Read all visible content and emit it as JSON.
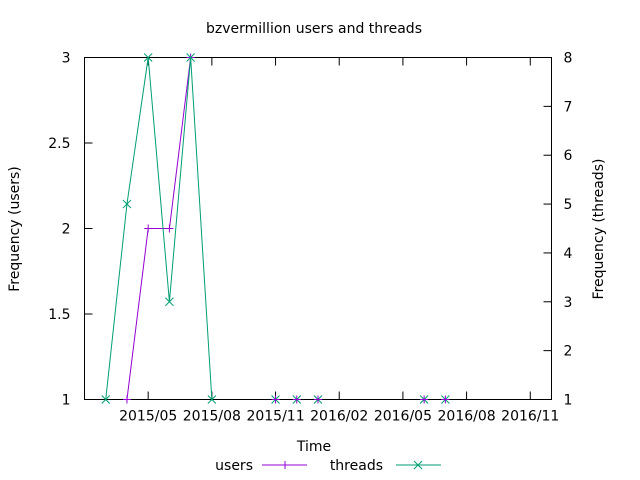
{
  "chart_data": {
    "type": "line",
    "title": "bzvermillion users and threads",
    "xlabel": "Time",
    "ylabel_left": "Frequency (users)",
    "ylabel_right": "Frequency (threads)",
    "x_tick_labels": [
      "2015/05",
      "2015/08",
      "2015/11",
      "2016/02",
      "2016/05",
      "2016/08",
      "2016/11"
    ],
    "ylim_left": [
      1,
      3
    ],
    "y_ticks_left": [
      "1",
      "1.5",
      "2",
      "2.5",
      "3"
    ],
    "ylim_right": [
      1,
      8
    ],
    "y_ticks_right": [
      "1",
      "2",
      "3",
      "4",
      "5",
      "6",
      "7",
      "8"
    ],
    "x_range": [
      "2015-02",
      "2016-12"
    ],
    "grid": false,
    "legend_position": "bottom",
    "series": [
      {
        "name": "users",
        "axis": "left",
        "color": "#9400d3",
        "marker": "plus",
        "points": [
          {
            "x": "2015-04",
            "y": 1
          },
          {
            "x": "2015-05",
            "y": 2
          },
          {
            "x": "2015-06",
            "y": 2
          },
          {
            "x": "2015-07",
            "y": 3
          }
        ]
      },
      {
        "name": "threads",
        "axis": "right",
        "color": "#009e73",
        "marker": "cross",
        "points": [
          {
            "x": "2015-03",
            "y": 1
          },
          {
            "x": "2015-04",
            "y": 5
          },
          {
            "x": "2015-05",
            "y": 8
          },
          {
            "x": "2015-06",
            "y": 3
          },
          {
            "x": "2015-07",
            "y": 8
          },
          {
            "x": "2015-08",
            "y": 1
          }
        ]
      },
      {
        "name": "",
        "axis": "right",
        "color": "#009e73",
        "marker": "cross",
        "line": false,
        "points": [
          {
            "x": "2015-11",
            "y": 1
          },
          {
            "x": "2015-12",
            "y": 1
          },
          {
            "x": "2016-01",
            "y": 1
          },
          {
            "x": "2016-06",
            "y": 1
          },
          {
            "x": "2016-07",
            "y": 1
          }
        ]
      },
      {
        "name": "",
        "axis": "left",
        "color": "#9400d3",
        "marker": "plus",
        "line": false,
        "points": [
          {
            "x": "2015-11",
            "y": 1
          },
          {
            "x": "2015-12",
            "y": 1
          },
          {
            "x": "2016-01",
            "y": 1
          },
          {
            "x": "2016-06",
            "y": 1
          },
          {
            "x": "2016-07",
            "y": 1
          }
        ]
      }
    ]
  }
}
